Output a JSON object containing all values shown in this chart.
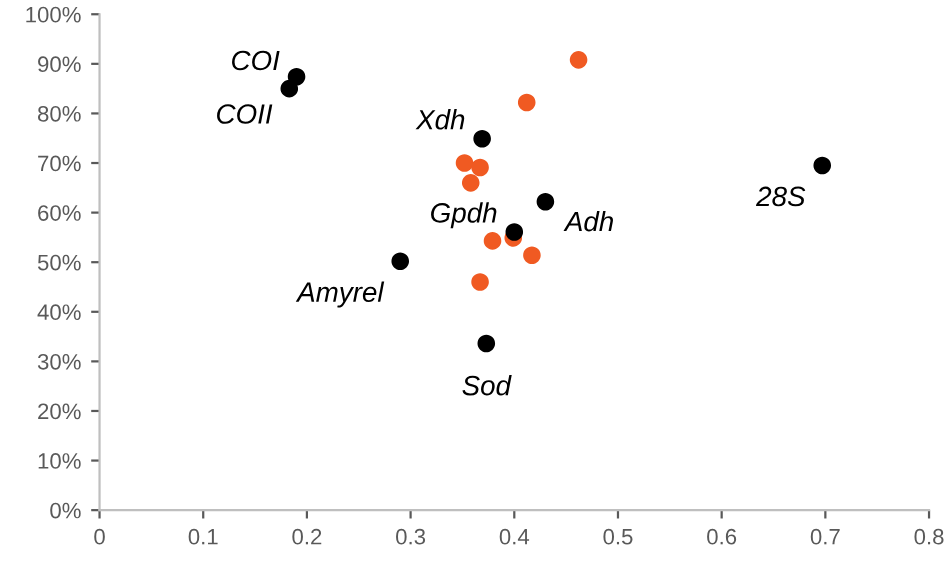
{
  "chart_data": {
    "type": "scatter",
    "series": [
      {
        "color": "#000000",
        "x": [
          0.19,
          0.183,
          0.29,
          0.369,
          0.697,
          0.43,
          0.4,
          0.373
        ],
        "values": [
          87.4,
          85,
          50.2,
          74.9,
          69.5,
          62.2,
          56.1,
          33.6
        ]
      },
      {
        "color": "#f05a22",
        "x": [
          0.462,
          0.412,
          0.352,
          0.367,
          0.358,
          0.379,
          0.399,
          0.417,
          0.367
        ],
        "values": [
          90.8,
          82.2,
          70,
          69.1,
          66,
          54.3,
          54.9,
          51.4,
          46
        ]
      }
    ],
    "annotations": [
      {
        "text": "COI",
        "x": 0.19,
        "y": 87.4
      },
      {
        "text": "COII",
        "x": 0.183,
        "y": 85
      },
      {
        "text": "Amyrel",
        "x": 0.29,
        "y": 50.2
      },
      {
        "text": "Xdh",
        "x": 0.369,
        "y": 74.9
      },
      {
        "text": "28S",
        "x": 0.697,
        "y": 69.5
      },
      {
        "text": "Adh",
        "x": 0.43,
        "y": 62.2
      },
      {
        "text": "Gpdh",
        "x": 0.4,
        "y": 56.1
      },
      {
        "text": "Sod",
        "x": 0.373,
        "y": 33.6
      }
    ],
    "xlim": [
      0,
      0.8
    ],
    "xticks": [
      {
        "value": 0,
        "label": "0"
      },
      0.1,
      0.2,
      0.3,
      0.4,
      0.5,
      0.6,
      0.7,
      0.8
    ],
    "ylim": [
      0,
      100
    ],
    "yticks": [
      {
        "value": 0,
        "label": "0%"
      },
      {
        "value": 10,
        "label": "10%"
      },
      {
        "value": 20,
        "label": "20%"
      },
      {
        "value": 30,
        "label": "30%"
      },
      {
        "value": 40,
        "label": "40%"
      },
      {
        "value": 50,
        "label": "50%"
      },
      {
        "value": 60,
        "label": "60%"
      },
      {
        "value": 70,
        "label": "70%"
      },
      {
        "value": 80,
        "label": "80%"
      },
      {
        "value": 90,
        "label": "90%"
      },
      {
        "value": 100,
        "label": "100%"
      }
    ],
    "grid": false,
    "legend": false,
    "marker": "circle"
  }
}
